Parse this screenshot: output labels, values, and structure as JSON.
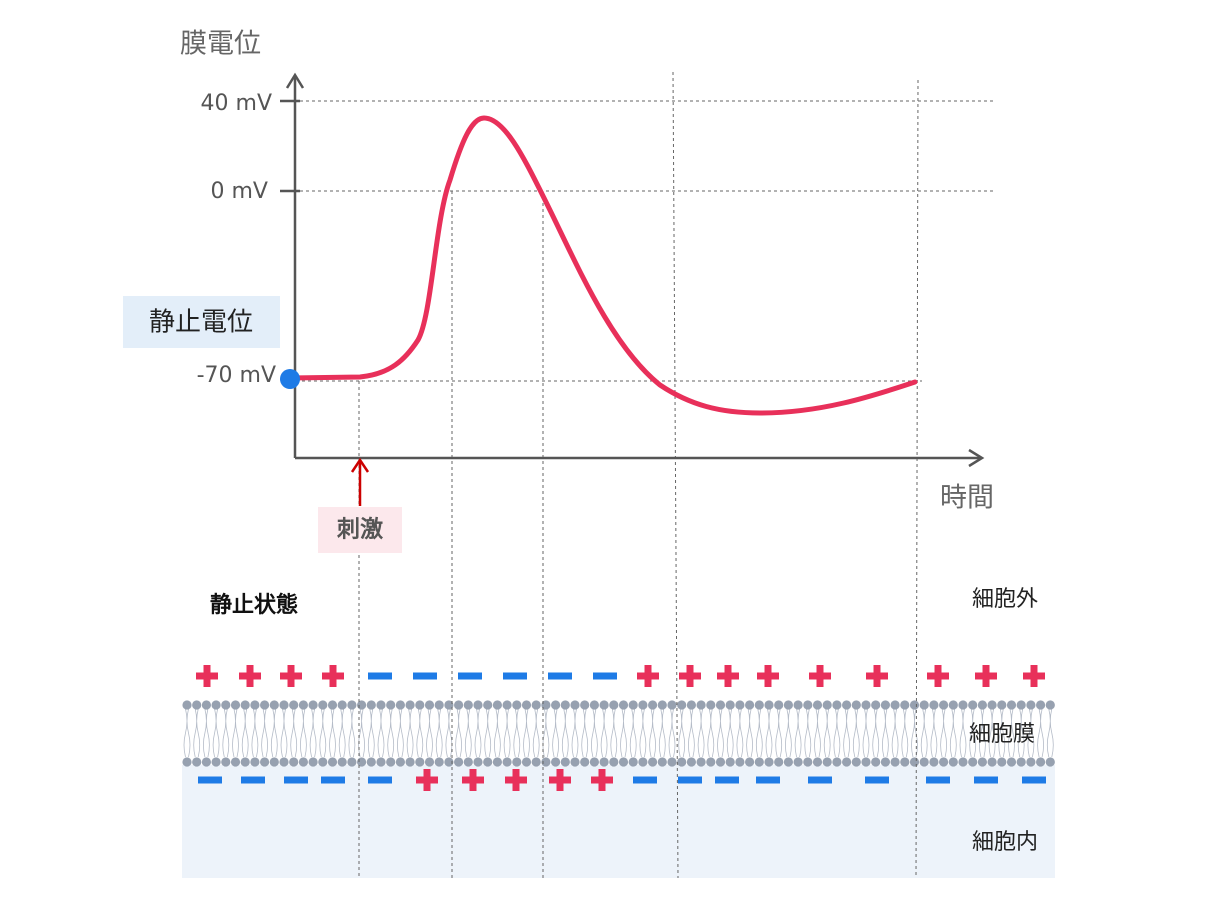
{
  "graph": {
    "y_axis_label": "膜電位",
    "x_axis_label": "時間",
    "tick_labels": [
      "40 mV",
      "0 mV",
      "-70 mV"
    ],
    "resting_potential_label": "静止電位",
    "stimulus_label": "刺激"
  },
  "membrane": {
    "state_label": "静止状態",
    "outside_label": "細胞外",
    "membrane_label": "細胞膜",
    "inside_label": "細胞内"
  }
}
